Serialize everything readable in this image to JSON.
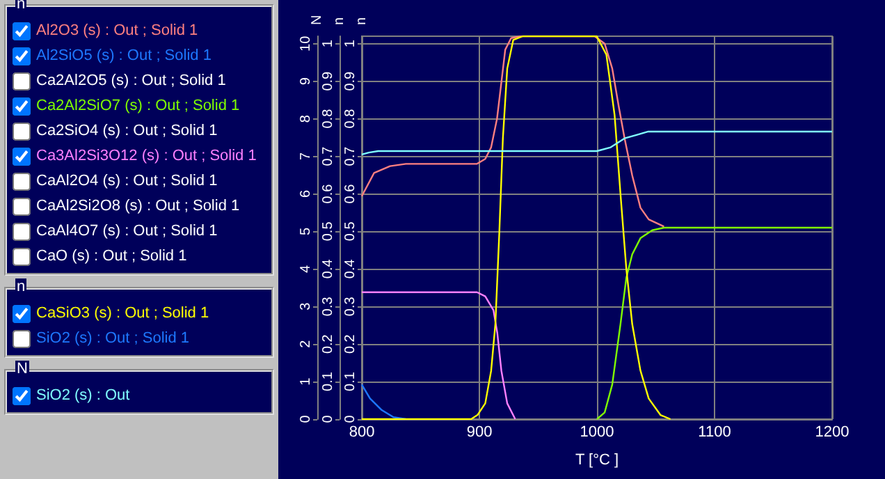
{
  "chart_data": {
    "type": "line",
    "xlabel": "T [°C ]",
    "ylabel": "N",
    "y2label": "n",
    "y3label": "n",
    "xlim": [
      800,
      1200
    ],
    "xticks": [
      800,
      900,
      1000,
      1100,
      1200
    ],
    "ylim": [
      0,
      10.2
    ],
    "yticks": [
      0,
      1,
      2,
      3,
      4,
      5,
      6,
      7,
      8,
      9,
      10
    ],
    "y2lim": [
      0,
      1.02
    ],
    "y2ticks": [
      0,
      0.1,
      0.2,
      0.3,
      0.4,
      0.5,
      0.6,
      0.7,
      0.8,
      0.9,
      1
    ],
    "y3lim": [
      0,
      1.02
    ],
    "y3ticks": [
      0,
      0.1,
      0.2,
      0.3,
      0.4,
      0.5,
      0.6,
      0.7,
      0.8,
      0.9,
      1
    ],
    "grid": true,
    "legend": "left",
    "marker": "none",
    "line_style": "solid",
    "series": [
      {
        "name": "Al2O3 (s) : Out ; Solid 1",
        "color": "#ff8080",
        "axis": "y3",
        "x": [
          800,
          810.5,
          824,
          837.5,
          898,
          905,
          910,
          915,
          918.7,
          922,
          927,
          935.6,
          998,
          1006.6,
          1013,
          1018.4,
          1023.5,
          1030,
          1037,
          1044,
          1057
        ],
        "values": [
          0.594,
          0.656,
          0.674,
          0.68,
          0.68,
          0.693,
          0.724,
          0.8,
          0.897,
          0.984,
          1.015,
          1.02,
          1.02,
          1.0,
          0.934,
          0.835,
          0.748,
          0.649,
          0.563,
          0.532,
          0.513
        ]
      },
      {
        "name": "Al2SiO5 (s) : Out ; Solid 1",
        "color": "#1e78ff",
        "axis": "y3",
        "x": [
          800,
          807,
          817,
          827,
          837.5
        ],
        "values": [
          0.092,
          0.055,
          0.024,
          0.005,
          0
        ]
      },
      {
        "name": "Ca2Al2O5 (s) : Out ; Solid 1",
        "color": "#ffffff",
        "axis": "y3"
      },
      {
        "name": "Ca2Al2SiO7 (s) : Out ; Solid 1",
        "color": "#80ff00",
        "axis": "y3",
        "x": [
          1000,
          1006.6,
          1013,
          1020,
          1025,
          1030,
          1037,
          1047,
          1057,
          1200
        ],
        "values": [
          0,
          0.018,
          0.092,
          0.253,
          0.377,
          0.439,
          0.482,
          0.503,
          0.51,
          0.51
        ]
      },
      {
        "name": "Ca2SiO4 (s) : Out ; Solid 1",
        "color": "#ffffff",
        "axis": "y3"
      },
      {
        "name": "Ca3Al2Si3O12 (s) : Out ; Solid 1",
        "color": "#ff80ff",
        "axis": "y3",
        "x": [
          800,
          898,
          905,
          912,
          915.3,
          918.7,
          923.7,
          930.5
        ],
        "values": [
          0.338,
          0.338,
          0.327,
          0.29,
          0.228,
          0.129,
          0.042,
          0
        ]
      },
      {
        "name": "CaAl2O4 (s) : Out ; Solid 1",
        "color": "#ffffff",
        "axis": "y3"
      },
      {
        "name": "CaAl2Si2O8 (s) : Out ; Solid 1",
        "color": "#ffffff",
        "axis": "y3"
      },
      {
        "name": "CaAl4O7 (s) : Out ; Solid 1",
        "color": "#ffffff",
        "axis": "y3"
      },
      {
        "name": "CaO (s) : Out ; Solid 1",
        "color": "#ffffff",
        "axis": "y3"
      },
      {
        "name": "CaSiO3 (s) : Out ; Solid 1",
        "color": "#ffff00",
        "axis": "y2",
        "x": [
          800,
          893,
          898.4,
          905,
          910,
          913.6,
          917,
          920,
          923.7,
          928.8,
          937,
          999.8,
          1008,
          1015,
          1020,
          1025,
          1030,
          1037,
          1044,
          1054,
          1062.5
        ],
        "values": [
          0,
          0,
          0.011,
          0.042,
          0.129,
          0.253,
          0.5,
          0.748,
          0.934,
          1.01,
          1.02,
          1.02,
          0.971,
          0.81,
          0.6,
          0.4,
          0.253,
          0.129,
          0.055,
          0.011,
          0
        ]
      },
      {
        "name": "SiO2 (s) : Out ; Solid 1",
        "color": "#1e78ff",
        "axis": "y2"
      },
      {
        "name": "SiO2 (s) : Out",
        "color": "#80ffff",
        "axis": "y",
        "x": [
          800,
          806,
          813.9,
          1000,
          1011.7,
          1023.5,
          1033.6,
          1043.7,
          1200
        ],
        "values": [
          7.05,
          7.1,
          7.14,
          7.14,
          7.24,
          7.48,
          7.57,
          7.66,
          7.66
        ]
      }
    ]
  }
}
